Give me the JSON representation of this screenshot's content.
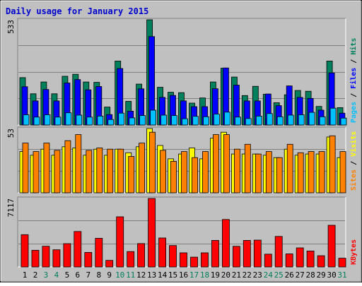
{
  "title": "Daily usage for January 2015",
  "colors": {
    "background": "#c0c0c0",
    "panel": "#c0c0c0",
    "title": "#0000cc",
    "hits": "#00805c",
    "files": "#0000ff",
    "pages": "#00c0ff",
    "visits": "#ffff00",
    "sites": "#ff8000",
    "kbytes": "#ff0000",
    "weekend_label": "#00805c",
    "weekday_label": "#000000"
  },
  "chart_data": [
    {
      "type": "bar",
      "panel": "top",
      "categories": [
        "1",
        "2",
        "3",
        "4",
        "5",
        "6",
        "7",
        "8",
        "9",
        "10",
        "11",
        "12",
        "13",
        "14",
        "15",
        "16",
        "17",
        "18",
        "19",
        "20",
        "21",
        "22",
        "23",
        "24",
        "25",
        "26",
        "27",
        "28",
        "29",
        "30",
        "31"
      ],
      "ymax_label": "533",
      "ylim": [
        0,
        533
      ],
      "series": [
        {
          "name": "Hits",
          "color_key": "hits",
          "values": [
            240,
            158,
            218,
            158,
            247,
            257,
            218,
            216,
            91,
            324,
            120,
            207,
            533,
            191,
            166,
            164,
            111,
            137,
            218,
            288,
            243,
            149,
            196,
            156,
            113,
            153,
            175,
            171,
            94,
            324,
            88
          ]
        },
        {
          "name": "Files",
          "color_key": "files",
          "values": [
            194,
            122,
            180,
            122,
            213,
            230,
            178,
            195,
            53,
            286,
            70,
            183,
            448,
            140,
            150,
            122,
            93,
            93,
            184,
            289,
            202,
            122,
            122,
            157,
            98,
            198,
            140,
            135,
            75,
            264,
            60
          ]
        },
        {
          "name": "Pages",
          "color_key": "pages",
          "values": [
            52,
            40,
            52,
            40,
            62,
            50,
            40,
            45,
            28,
            60,
            36,
            48,
            75,
            50,
            48,
            32,
            44,
            42,
            55,
            65,
            40,
            33,
            45,
            58,
            42,
            50,
            52,
            64,
            42,
            85,
            35
          ]
        }
      ],
      "legend_order": [
        "Pages",
        "Files",
        "Hits"
      ]
    },
    {
      "type": "bar",
      "panel": "middle",
      "categories": [
        "1",
        "2",
        "3",
        "4",
        "5",
        "6",
        "7",
        "8",
        "9",
        "10",
        "11",
        "12",
        "13",
        "14",
        "15",
        "16",
        "17",
        "18",
        "19",
        "20",
        "21",
        "22",
        "23",
        "24",
        "25",
        "26",
        "27",
        "28",
        "29",
        "30",
        "31"
      ],
      "ymax_label": "53",
      "ylim": [
        0,
        53
      ],
      "series": [
        {
          "name": "Visits",
          "color_key": "visits",
          "values": [
            34,
            31,
            36,
            31,
            38,
            37,
            31,
            36,
            31,
            36,
            33,
            38,
            53,
            39,
            28,
            32,
            37,
            28,
            45,
            50,
            32,
            32,
            32,
            31,
            29,
            36,
            31,
            32,
            32,
            46,
            29
          ]
        },
        {
          "name": "Sites",
          "color_key": "sites",
          "values": [
            41,
            34,
            41,
            35,
            43,
            48,
            35,
            37,
            36,
            36,
            30,
            41,
            50,
            35,
            26,
            34,
            29,
            34,
            48,
            48,
            36,
            40,
            32,
            34,
            29,
            40,
            33,
            34,
            34,
            47,
            34
          ]
        }
      ],
      "legend_order": [
        "Sites",
        "Visits"
      ]
    },
    {
      "type": "bar",
      "panel": "bottom",
      "categories": [
        "1",
        "2",
        "3",
        "4",
        "5",
        "6",
        "7",
        "8",
        "9",
        "10",
        "11",
        "12",
        "13",
        "14",
        "15",
        "16",
        "17",
        "18",
        "19",
        "20",
        "21",
        "22",
        "23",
        "24",
        "25",
        "26",
        "27",
        "28",
        "29",
        "30",
        "31"
      ],
      "ymax_label": "7117",
      "ylim": [
        0,
        7117
      ],
      "series": [
        {
          "name": "KBytes",
          "color_key": "kbytes",
          "values": [
            3350,
            1730,
            2150,
            1780,
            2420,
            3680,
            1510,
            2980,
            680,
            5210,
            1600,
            2430,
            7117,
            3010,
            2220,
            1470,
            1020,
            1470,
            2760,
            4930,
            2140,
            2760,
            2790,
            1330,
            3170,
            1360,
            1980,
            1660,
            1170,
            4330,
            910
          ]
        }
      ],
      "legend_order": [
        "KBytes"
      ]
    }
  ],
  "weekend_days": [
    3,
    4,
    10,
    11,
    17,
    18,
    24,
    25,
    31
  ]
}
